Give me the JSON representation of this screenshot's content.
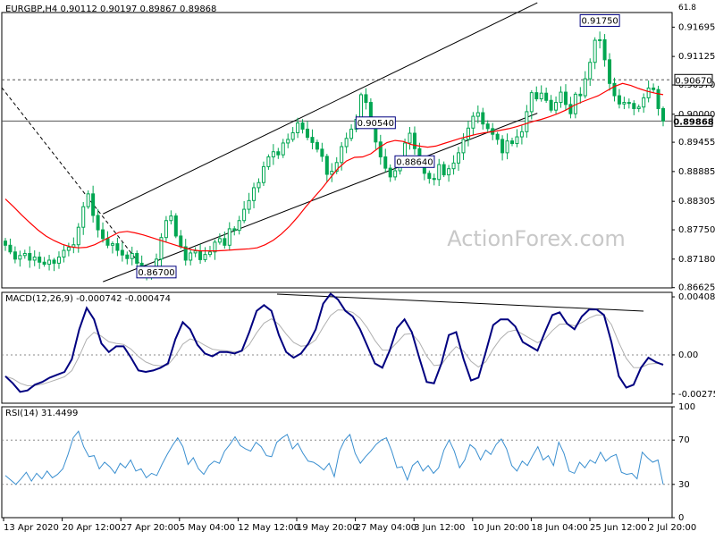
{
  "chart_data": [
    {
      "type": "candlestick",
      "header": "EURGBP,H4  0.90112 0.90197 0.89867 0.89868",
      "ylim": [
        0.8662,
        0.9198
      ],
      "ytick_labels": [
        "0.91695",
        "0.91125",
        "0.90570",
        "0.90000",
        "0.89455",
        "0.88885",
        "0.88305",
        "0.87750",
        "0.87180",
        "0.86625"
      ],
      "yticks": [
        0.91695,
        0.91125,
        0.9057,
        0.9,
        0.89455,
        0.88885,
        0.88305,
        0.8775,
        0.8718,
        0.86625
      ],
      "corner_label": "61.8",
      "watermark": "ActionForex.com",
      "close_series": [
        0.8745,
        0.8732,
        0.8718,
        0.8725,
        0.8729,
        0.8716,
        0.8722,
        0.8712,
        0.8708,
        0.8716,
        0.871,
        0.8722,
        0.8735,
        0.8741,
        0.8746,
        0.878,
        0.882,
        0.8845,
        0.8803,
        0.8775,
        0.8758,
        0.8745,
        0.8748,
        0.8735,
        0.8726,
        0.8719,
        0.8729,
        0.871,
        0.8702,
        0.8683,
        0.8695,
        0.8718,
        0.876,
        0.8793,
        0.8802,
        0.8763,
        0.8742,
        0.8716,
        0.873,
        0.8734,
        0.8717,
        0.8727,
        0.8732,
        0.8751,
        0.8758,
        0.8745,
        0.8777,
        0.8774,
        0.8793,
        0.8815,
        0.8832,
        0.8857,
        0.8867,
        0.8898,
        0.8917,
        0.8927,
        0.8921,
        0.8944,
        0.8951,
        0.8964,
        0.8983,
        0.8971,
        0.8955,
        0.8945,
        0.8932,
        0.8918,
        0.8883,
        0.8889,
        0.8906,
        0.8937,
        0.8953,
        0.8971,
        0.899,
        0.9038,
        0.9023,
        0.8985,
        0.8946,
        0.8917,
        0.8895,
        0.8878,
        0.889,
        0.8908,
        0.8944,
        0.8963,
        0.8933,
        0.8907,
        0.8885,
        0.8875,
        0.8873,
        0.8902,
        0.8882,
        0.8894,
        0.8905,
        0.8925,
        0.8951,
        0.8973,
        0.8996,
        0.9003,
        0.8981,
        0.8972,
        0.8961,
        0.8951,
        0.8925,
        0.8948,
        0.8943,
        0.8956,
        0.8966,
        0.9005,
        0.9042,
        0.903,
        0.9041,
        0.9027,
        0.9008,
        0.9023,
        0.9043,
        0.9019,
        0.9001,
        0.9039,
        0.9036,
        0.9069,
        0.9101,
        0.9144,
        0.9145,
        0.9106,
        0.906,
        0.9036,
        0.902,
        0.9023,
        0.9021,
        0.9011,
        0.9014,
        0.9032,
        0.9051,
        0.9048,
        0.9011,
        0.8987
      ],
      "ma_series": [
        0.8835,
        0.882,
        0.8804,
        0.8789,
        0.8775,
        0.8763,
        0.8754,
        0.8747,
        0.8742,
        0.874,
        0.8741,
        0.8746,
        0.8754,
        0.8762,
        0.877,
        0.8772,
        0.8769,
        0.8765,
        0.876,
        0.8755,
        0.875,
        0.8745,
        0.874,
        0.8736,
        0.8734,
        0.8734,
        0.8734,
        0.8735,
        0.8736,
        0.8737,
        0.8738,
        0.874,
        0.8746,
        0.8755,
        0.8767,
        0.8782,
        0.88,
        0.882,
        0.8838,
        0.8856,
        0.8876,
        0.8895,
        0.8909,
        0.8916,
        0.8917,
        0.8923,
        0.8935,
        0.8945,
        0.8949,
        0.8947,
        0.8941,
        0.8938,
        0.8936,
        0.8938,
        0.8943,
        0.8948,
        0.8953,
        0.8957,
        0.8961,
        0.8964,
        0.8966,
        0.8969,
        0.8972,
        0.8976,
        0.8981,
        0.8986,
        0.899,
        0.8995,
        0.9001,
        0.9008,
        0.9017,
        0.9024,
        0.903,
        0.9036,
        0.9045,
        0.9054,
        0.906,
        0.9056,
        0.905,
        0.9045,
        0.9041,
        0.9038
      ],
      "annotations": [
        {
          "label": "0.86700",
          "bar": 31
        },
        {
          "label": "0.88640",
          "bar": 84
        },
        {
          "label": "0.90540",
          "bar": 76
        },
        {
          "label": "0.91750",
          "bar": 122
        }
      ],
      "price_tags": [
        {
          "label": "0.90670",
          "value": 0.9067,
          "style": "outline"
        },
        {
          "label": "0.89868",
          "value": 0.89868,
          "style": "filled"
        }
      ],
      "channel_lines": [
        {
          "x1": 0.151,
          "y1": 0.8806,
          "x2": 0.799,
          "y2": 0.9217
        },
        {
          "x1": 0.151,
          "y1": 0.8674,
          "x2": 0.799,
          "y2": 0.9002
        }
      ]
    },
    {
      "type": "line",
      "header": "MACD(12,26,9) -0.000742 -0.000474",
      "ylim": [
        -0.0034,
        0.0044
      ],
      "ytick_labels": [
        "0.004083",
        "0.00",
        "-0.002757"
      ],
      "yticks": [
        0.004083,
        0.0,
        -0.002757
      ],
      "series": [
        {
          "name": "MACD",
          "values": [
            -0.0015,
            -0.002,
            -0.0026,
            -0.0025,
            -0.0021,
            -0.0019,
            -0.0016,
            -0.0014,
            -0.0012,
            -0.0003,
            0.0018,
            0.0033,
            0.0025,
            0.0008,
            0.0002,
            0.0006,
            0.0006,
            -0.0002,
            -0.0011,
            -0.0012,
            -0.0011,
            -0.0009,
            -0.0006,
            0.0011,
            0.0023,
            0.0018,
            0.0007,
            0.0001,
            -0.0001,
            0.0002,
            0.0002,
            0.0001,
            0.0003,
            0.0016,
            0.0031,
            0.0035,
            0.0031,
            0.0014,
            0.0002,
            -0.0002,
            0.0001,
            0.0008,
            0.0018,
            0.0036,
            0.0043,
            0.0039,
            0.0031,
            0.0027,
            0.0018,
            0.0006,
            -0.0006,
            -0.0009,
            0.0003,
            0.0019,
            0.0025,
            0.0016,
            -0.0002,
            -0.0019,
            -0.002,
            -0.0006,
            0.0014,
            0.0016,
            -0.0003,
            -0.0018,
            -0.0016,
            0.0002,
            0.0021,
            0.0025,
            0.0025,
            0.002,
            0.0009,
            0.0006,
            0.0003,
            0.0016,
            0.0028,
            0.003,
            0.0022,
            0.0018,
            0.0027,
            0.0032,
            0.0032,
            0.0028,
            0.0009,
            -0.0015,
            -0.0023,
            -0.0021,
            -0.0009,
            -0.0002,
            -0.0005,
            -0.0007
          ]
        }
      ]
    },
    {
      "type": "line",
      "header": "RSI(14) 31.4499",
      "ylim": [
        0,
        100
      ],
      "ytick_labels": [
        "100",
        "70",
        "30",
        "0"
      ],
      "yticks": [
        100,
        70,
        30,
        0
      ],
      "series": [
        {
          "name": "RSI",
          "values": [
            38,
            34,
            30,
            35,
            41,
            33,
            40,
            35,
            42,
            36,
            39,
            44,
            57,
            72,
            78,
            64,
            55,
            56,
            44,
            50,
            46,
            40,
            49,
            45,
            52,
            42,
            44,
            36,
            40,
            38,
            48,
            57,
            65,
            72,
            64,
            48,
            54,
            44,
            39,
            47,
            51,
            49,
            60,
            66,
            73,
            65,
            62,
            60,
            68,
            64,
            56,
            55,
            68,
            72,
            75,
            62,
            67,
            58,
            51,
            50,
            47,
            43,
            49,
            37,
            60,
            70,
            75,
            58,
            49,
            55,
            60,
            66,
            70,
            72,
            60,
            45,
            46,
            34,
            47,
            51,
            42,
            47,
            40,
            45,
            61,
            70,
            60,
            45,
            52,
            66,
            62,
            52,
            61,
            57,
            66,
            71,
            62,
            47,
            42,
            51,
            47,
            56,
            64,
            52,
            56,
            47,
            68,
            58,
            42,
            40,
            50,
            45,
            52,
            49,
            59,
            51,
            55,
            57,
            41,
            39,
            40,
            35,
            59,
            54,
            50,
            52,
            30
          ]
        }
      ]
    }
  ],
  "x_axis": {
    "tick_labels": [
      "13 Apr 2020",
      "20 Apr 12:00",
      "27 Apr 20:00",
      "5 May 04:00",
      "12 May 12:00",
      "19 May 20:00",
      "27 May 04:00",
      "3 Jun 12:00",
      "10 Jun 20:00",
      "18 Jun 04:00",
      "25 Jun 12:00",
      "2 Jul 20:00"
    ]
  },
  "colors": {
    "bull": "#00a651",
    "bear": "#00a651",
    "ma": "#ff0000",
    "macd": "#000080",
    "signal": "#b0b0b0",
    "rsi": "#3a8fd0",
    "grid": "#000000",
    "watermark": "#c8c8c8"
  }
}
